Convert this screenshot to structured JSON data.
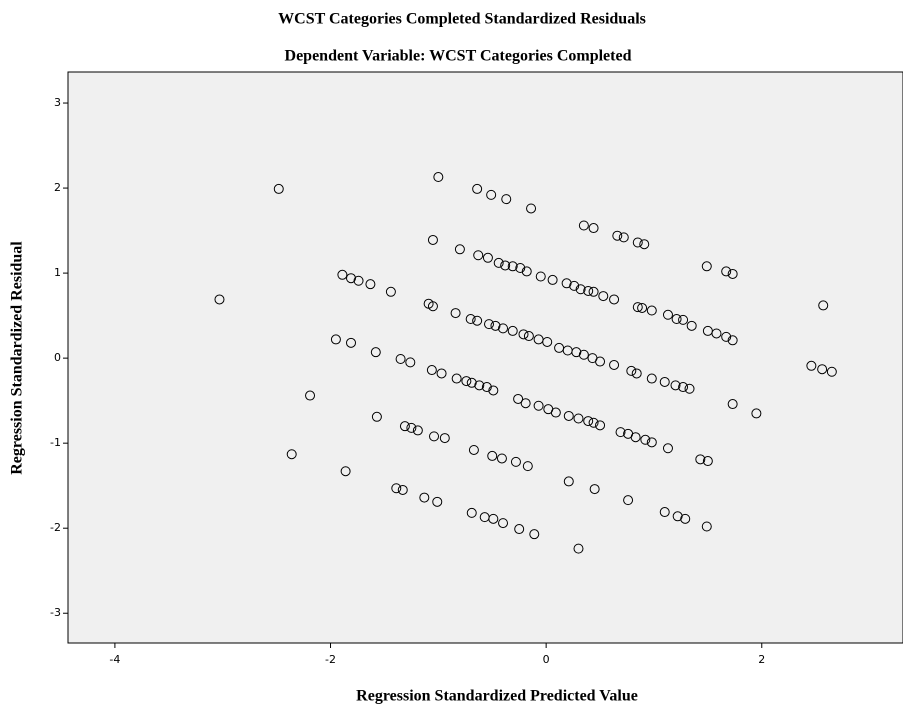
{
  "chart_data": {
    "type": "scatter",
    "title": "WCST Categories Completed Standardized Residuals",
    "subtitle": "Dependent Variable: WCST Categories Completed",
    "xlabel": "Regression Standardized Predicted Value",
    "ylabel": "Regression Standardized Residual",
    "color": "#000000",
    "x": [
      -2.48,
      -3.03,
      -1.0,
      -0.64,
      -0.51,
      -0.37,
      -0.14,
      0.35,
      0.44,
      0.66,
      0.72,
      0.85,
      0.91,
      -1.05,
      -0.8,
      -0.63,
      -0.54,
      -0.44,
      -0.38,
      -0.31,
      -0.24,
      -0.18,
      -0.05,
      0.06,
      0.19,
      0.26,
      0.32,
      0.39,
      0.44,
      0.53,
      0.63,
      0.85,
      0.89,
      0.98,
      1.13,
      1.21,
      1.27,
      1.35,
      1.5,
      1.58,
      1.67,
      1.73,
      1.49,
      1.67,
      1.73,
      2.57,
      -1.89,
      -1.81,
      -1.74,
      -1.63,
      -1.44,
      -1.09,
      -1.05,
      -0.84,
      -0.7,
      -0.64,
      -0.53,
      -0.47,
      -0.4,
      -0.31,
      -0.21,
      -0.16,
      -0.07,
      0.01,
      0.12,
      0.2,
      0.28,
      0.35,
      0.43,
      0.5,
      0.63,
      0.79,
      0.84,
      0.98,
      1.1,
      1.2,
      1.27,
      1.33,
      1.73,
      1.95,
      2.46,
      2.56,
      2.65,
      -1.95,
      -1.81,
      -1.58,
      -1.35,
      -1.26,
      -1.06,
      -0.97,
      -0.83,
      -0.74,
      -0.69,
      -0.62,
      -0.55,
      -0.49,
      -0.26,
      -0.19,
      -0.07,
      0.02,
      0.09,
      0.21,
      0.3,
      0.39,
      0.44,
      0.5,
      0.69,
      0.76,
      0.83,
      0.92,
      0.98,
      1.13,
      1.43,
      1.5,
      -2.19,
      -1.57,
      -1.31,
      -1.25,
      -1.19,
      -1.04,
      -0.94,
      -0.67,
      -0.5,
      -0.41,
      -0.28,
      -0.17,
      -2.36,
      -1.86,
      -1.39,
      -1.33,
      -1.13,
      -1.01,
      0.21,
      0.45,
      0.76,
      1.1,
      1.22,
      1.29,
      1.49,
      -0.69,
      -0.57,
      -0.49,
      -0.4,
      -0.25,
      -0.11,
      0.3
    ],
    "values": [
      1.99,
      0.69,
      2.13,
      1.99,
      1.92,
      1.87,
      1.76,
      1.56,
      1.53,
      1.44,
      1.42,
      1.36,
      1.34,
      1.39,
      1.28,
      1.21,
      1.18,
      1.12,
      1.09,
      1.08,
      1.06,
      1.02,
      0.96,
      0.92,
      0.88,
      0.85,
      0.81,
      0.79,
      0.78,
      0.73,
      0.69,
      0.6,
      0.59,
      0.56,
      0.51,
      0.46,
      0.45,
      0.38,
      0.32,
      0.29,
      0.25,
      0.21,
      1.08,
      1.02,
      0.99,
      0.62,
      0.98,
      0.94,
      0.91,
      0.87,
      0.78,
      0.64,
      0.61,
      0.53,
      0.46,
      0.44,
      0.4,
      0.38,
      0.35,
      0.32,
      0.28,
      0.26,
      0.22,
      0.19,
      0.12,
      0.09,
      0.07,
      0.04,
      0.0,
      -0.04,
      -0.08,
      -0.15,
      -0.18,
      -0.24,
      -0.28,
      -0.32,
      -0.34,
      -0.36,
      -0.54,
      -0.65,
      -0.09,
      -0.13,
      -0.16,
      0.22,
      0.18,
      0.07,
      -0.01,
      -0.05,
      -0.14,
      -0.18,
      -0.24,
      -0.27,
      -0.29,
      -0.32,
      -0.34,
      -0.38,
      -0.48,
      -0.53,
      -0.56,
      -0.6,
      -0.64,
      -0.68,
      -0.71,
      -0.74,
      -0.76,
      -0.79,
      -0.87,
      -0.89,
      -0.93,
      -0.96,
      -0.99,
      -1.06,
      -1.19,
      -1.21,
      -0.44,
      -0.69,
      -0.8,
      -0.82,
      -0.85,
      -0.92,
      -0.94,
      -1.08,
      -1.15,
      -1.18,
      -1.22,
      -1.27,
      -1.13,
      -1.33,
      -1.53,
      -1.55,
      -1.64,
      -1.69,
      -1.45,
      -1.54,
      -1.67,
      -1.81,
      -1.86,
      -1.89,
      -1.98,
      -1.82,
      -1.87,
      -1.89,
      -1.94,
      -2.01,
      -2.07,
      -2.24
    ],
    "xlim": [
      -4.435,
      3.31
    ],
    "xticks": [
      -4,
      -2,
      0,
      2
    ],
    "ylim": [
      -3.35,
      3.365
    ],
    "yticks": [
      -3,
      -2,
      -1,
      0,
      1,
      2,
      3
    ]
  }
}
